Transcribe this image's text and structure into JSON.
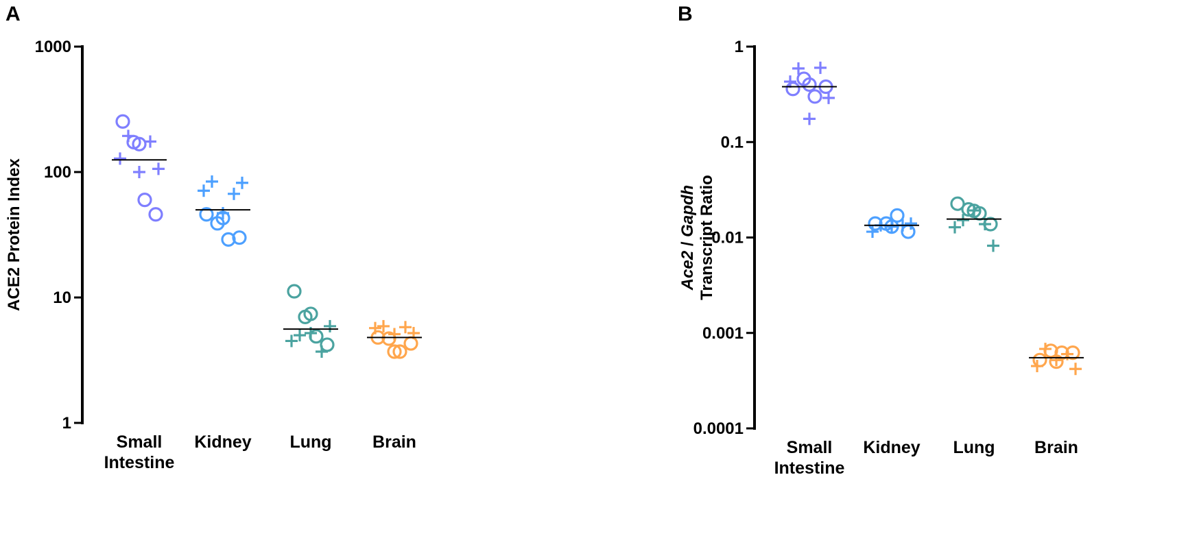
{
  "chart_data": [
    {
      "panel_label": "A",
      "type": "scatter",
      "ylabel": "ACE2 Protein Index",
      "ylabel_parts": [],
      "yscale": "log",
      "ylim": [
        1,
        1000
      ],
      "yticks": [
        1,
        10,
        100,
        1000
      ],
      "ytick_labels": [
        "1",
        "10",
        "100",
        "1000"
      ],
      "categories": [
        [
          "Small",
          "Intestine"
        ],
        [
          "Kidney"
        ],
        [
          "Lung"
        ],
        [
          "Brain"
        ]
      ],
      "series": [
        {
          "name": "Small Intestine",
          "color": "#7f7fff",
          "median": 125,
          "circles": [
            253,
            173,
            167,
            60,
            46
          ],
          "plus": [
            194,
            175,
            128,
            106,
            100
          ]
        },
        {
          "name": "Kidney",
          "color": "#4da0ff",
          "median": 50,
          "circles": [
            46,
            39,
            43,
            29,
            30
          ],
          "plus": [
            84,
            67,
            71,
            82,
            47
          ]
        },
        {
          "name": "Lung",
          "color": "#4ba3a0",
          "median": 5.6,
          "circles": [
            11.2,
            7.0,
            7.4,
            4.9,
            4.2
          ],
          "plus": [
            5.0,
            3.7,
            4.5,
            5.9,
            5.2
          ]
        },
        {
          "name": "Brain",
          "color": "#ffa64d",
          "median": 4.8,
          "circles": [
            4.8,
            4.7,
            3.7,
            3.7,
            4.3
          ],
          "plus": [
            5.9,
            5.8,
            5.7,
            5.2,
            5.1
          ]
        }
      ]
    },
    {
      "panel_label": "B",
      "type": "scatter",
      "ylabel": "Transcript Ratio",
      "ylabel_parts": [
        "Ace2",
        " / ",
        "Gapdh"
      ],
      "yscale": "log",
      "ylim": [
        0.0001,
        1
      ],
      "yticks": [
        0.0001,
        0.001,
        0.01,
        0.1,
        1
      ],
      "ytick_labels": [
        "0.0001",
        "0.001",
        "0.01",
        "0.1",
        "1"
      ],
      "categories": [
        [
          "Small",
          "Intestine"
        ],
        [
          "Kidney"
        ],
        [
          "Lung"
        ],
        [
          "Brain"
        ]
      ],
      "series": [
        {
          "name": "Small Intestine",
          "color": "#7f7fff",
          "median": 0.38,
          "circles": [
            0.36,
            0.46,
            0.4,
            0.3,
            0.38
          ],
          "plus": [
            0.59,
            0.6,
            0.43,
            0.29,
            0.175
          ]
        },
        {
          "name": "Kidney",
          "color": "#4da0ff",
          "median": 0.0134,
          "circles": [
            0.014,
            0.014,
            0.013,
            0.017,
            0.0115
          ],
          "plus": [
            0.0134,
            0.0134,
            0.0115,
            0.014,
            0.013
          ]
        },
        {
          "name": "Lung",
          "color": "#4ba3a0",
          "median": 0.0156,
          "circles": [
            0.0226,
            0.0197,
            0.019,
            0.0179,
            0.0138
          ],
          "plus": [
            0.0152,
            0.0138,
            0.0128,
            0.0082,
            0.0192
          ]
        },
        {
          "name": "Brain",
          "color": "#ffa64d",
          "median": 0.00055,
          "circles": [
            0.00052,
            0.00065,
            0.0005,
            0.00062,
            0.00062
          ],
          "plus": [
            0.00068,
            0.0006,
            0.00045,
            0.00042,
            0.00052
          ]
        }
      ]
    }
  ]
}
